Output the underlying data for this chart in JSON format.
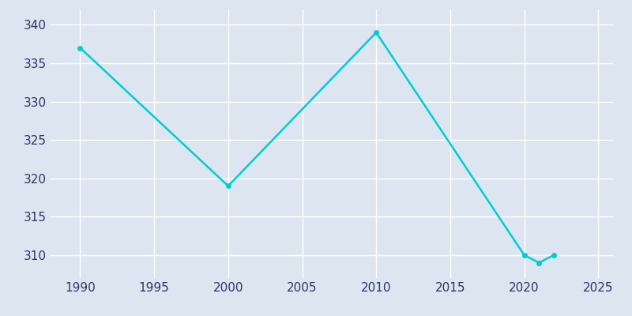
{
  "years": [
    1990,
    2000,
    2010,
    2020,
    2021,
    2022
  ],
  "population": [
    337,
    319,
    339,
    310,
    309,
    310
  ],
  "line_color": "#00CED1",
  "bg_color": "#dce5f0",
  "plot_bg_color": "#dce5f0",
  "grid_color": "#ffffff",
  "tick_color": "#2d3561",
  "xlim": [
    1988,
    2026
  ],
  "ylim": [
    307,
    342
  ],
  "xticks": [
    1990,
    1995,
    2000,
    2005,
    2010,
    2015,
    2020,
    2025
  ],
  "yticks": [
    310,
    315,
    320,
    325,
    330,
    335,
    340
  ],
  "linewidth": 1.8,
  "marker": "o",
  "markersize": 4,
  "figsize": [
    8.0,
    4.0
  ],
  "dpi": 100
}
